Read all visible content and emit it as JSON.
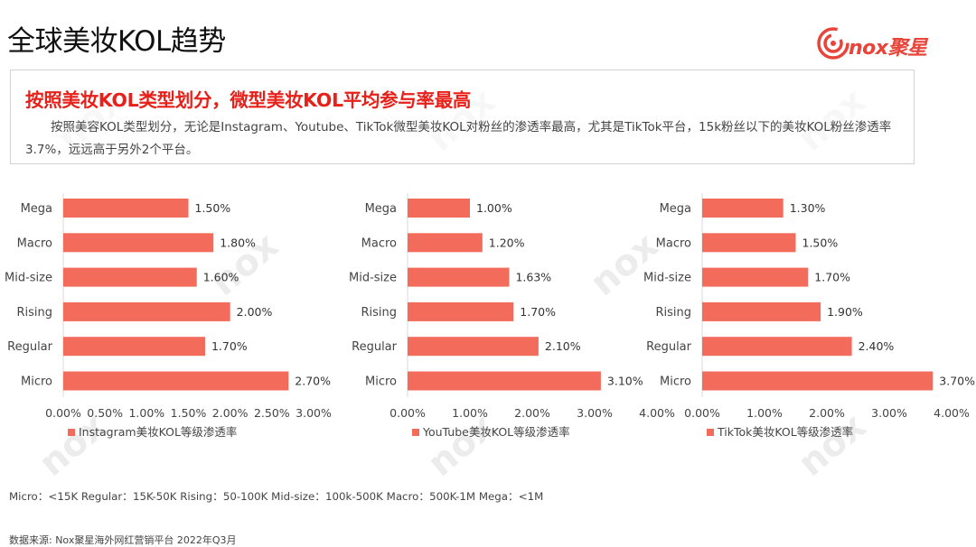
{
  "page": {
    "title": "全球美妆KOL趋势",
    "logo_text": "nox聚星",
    "headline": "按照美妆KOL类型划分，微型美妆KOL平均参与率最高",
    "description": "按照美容KOL类型划分，无论是Instagram、Youtube、TikTok微型美妆KOL对粉丝的渗透率最高，尤其是TikTok平台，15k粉丝以下的美妆KOL粉丝渗透率3.7%，远远高于另外2个平台。",
    "footnote": "Micro：<15K Regular：15K-50K Rising：50-100K Mid-size：100k-500K Macro：500K-1M Mega：<1M",
    "source": "数据来源: Nox聚星海外网红营销平台 2022年Q3月"
  },
  "colors": {
    "bar": "#f26b5b",
    "headline": "#e8201a",
    "brand": "#e8443a"
  },
  "chart_data": [
    {
      "type": "bar",
      "orientation": "horizontal",
      "categories": [
        "Mega",
        "Macro",
        "Mid-size",
        "Rising",
        "Regular",
        "Micro"
      ],
      "series": [
        {
          "name": "Instagram美妆KOL等级渗透率",
          "values": [
            1.5,
            1.8,
            1.6,
            2.0,
            1.7,
            2.7
          ]
        }
      ],
      "data_labels": [
        "1.50%",
        "1.80%",
        "1.60%",
        "2.00%",
        "1.70%",
        "2.70%"
      ],
      "xlim": [
        0,
        3.0
      ],
      "xticks": [
        "0.00%",
        "0.50%",
        "1.00%",
        "1.50%",
        "2.00%",
        "2.50%",
        "3.00%"
      ],
      "legend_position": "bottom"
    },
    {
      "type": "bar",
      "orientation": "horizontal",
      "categories": [
        "Mega",
        "Macro",
        "Mid-size",
        "Rising",
        "Regular",
        "Micro"
      ],
      "series": [
        {
          "name": "YouTube美妆KOL等级渗透率",
          "values": [
            1.0,
            1.2,
            1.63,
            1.7,
            2.1,
            3.1
          ]
        }
      ],
      "data_labels": [
        "1.00%",
        "1.20%",
        "1.63%",
        "1.70%",
        "2.10%",
        "3.10%"
      ],
      "xlim": [
        0,
        4.0
      ],
      "xticks": [
        "0.00%",
        "1.00%",
        "2.00%",
        "3.00%",
        "4.00%"
      ],
      "legend_position": "bottom"
    },
    {
      "type": "bar",
      "orientation": "horizontal",
      "categories": [
        "Mega",
        "Macro",
        "Mid-size",
        "Rising",
        "Regular",
        "Micro"
      ],
      "series": [
        {
          "name": "TikTok美妆KOL等级渗透率",
          "values": [
            1.3,
            1.5,
            1.7,
            1.9,
            2.4,
            3.7
          ]
        }
      ],
      "data_labels": [
        "1.30%",
        "1.50%",
        "1.70%",
        "1.90%",
        "2.40%",
        "3.70%"
      ],
      "xlim": [
        0,
        4.0
      ],
      "xticks": [
        "0.00%",
        "1.00%",
        "2.00%",
        "3.00%",
        "4.00%"
      ],
      "legend_position": "bottom"
    }
  ]
}
